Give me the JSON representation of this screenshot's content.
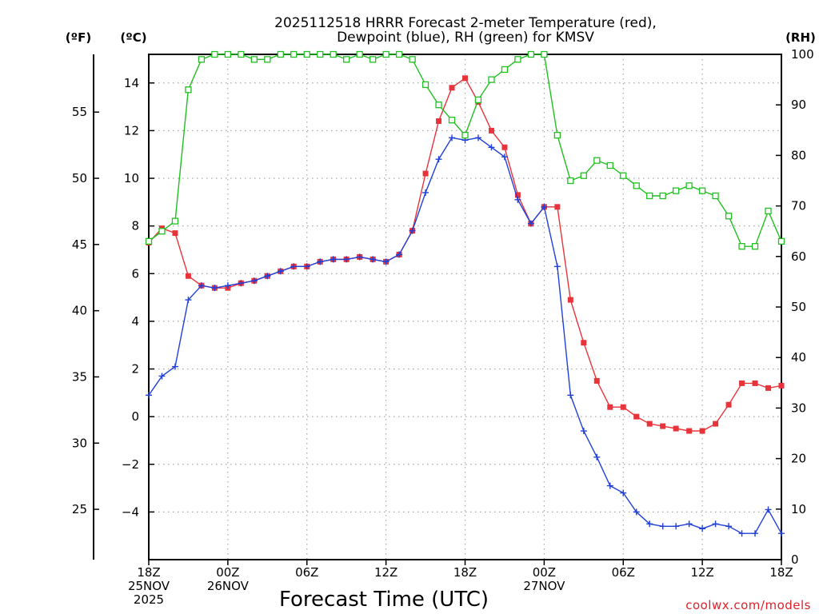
{
  "chart_data": {
    "type": "line",
    "title_lines": [
      "2025112518 HRRR Forecast 2-meter Temperature (red),",
      "Dewpoint (blue), RH (green) for KMSV"
    ],
    "xlabel": "Forecast Time (UTC)",
    "units": {
      "fahrenheit": "(ºF)",
      "celsius": "(ºC)",
      "rh": "(RH)"
    },
    "credit": "coolwx.com/models",
    "x_ticks": [
      {
        "hour": 0,
        "lines": [
          "18Z",
          "25NOV",
          "2025"
        ]
      },
      {
        "hour": 6,
        "lines": [
          "00Z",
          "26NOV"
        ]
      },
      {
        "hour": 12,
        "lines": [
          "06Z"
        ]
      },
      {
        "hour": 18,
        "lines": [
          "12Z"
        ]
      },
      {
        "hour": 24,
        "lines": [
          "18Z"
        ]
      },
      {
        "hour": 30,
        "lines": [
          "00Z",
          "27NOV"
        ]
      },
      {
        "hour": 36,
        "lines": [
          "06Z"
        ]
      },
      {
        "hour": 42,
        "lines": [
          "12Z"
        ]
      },
      {
        "hour": 48,
        "lines": [
          "18Z"
        ]
      }
    ],
    "xlim": [
      0,
      48
    ],
    "ylim_celsius": [
      -6,
      15.2
    ],
    "ylim_rh": [
      0,
      100
    ],
    "celsius_ticks": [
      -4,
      -2,
      0,
      2,
      4,
      6,
      8,
      10,
      12,
      14
    ],
    "celsius_tick_labels": [
      "−4",
      "−2",
      "0",
      "2",
      "4",
      "6",
      "8",
      "10",
      "12",
      "14"
    ],
    "fahrenheit_ticks": [
      25,
      30,
      35,
      40,
      45,
      50,
      55
    ],
    "rh_ticks": [
      0,
      10,
      20,
      30,
      40,
      50,
      60,
      70,
      80,
      90,
      100
    ],
    "grid": true,
    "series": [
      {
        "name": "2-meter Temperature",
        "axis": "celsius",
        "color": "#e8333a",
        "marker": "filled-square",
        "values": [
          7.3,
          7.9,
          7.7,
          5.9,
          5.5,
          5.4,
          5.4,
          5.6,
          5.7,
          5.9,
          6.1,
          6.3,
          6.3,
          6.5,
          6.6,
          6.6,
          6.7,
          6.6,
          6.5,
          6.8,
          7.8,
          10.2,
          12.4,
          13.8,
          14.2,
          13.2,
          12.0,
          11.3,
          9.3,
          8.1,
          8.8,
          8.8,
          4.9,
          3.1,
          1.5,
          0.4,
          0.4,
          0.0,
          -0.3,
          -0.4,
          -0.5,
          -0.6,
          -0.6,
          -0.3,
          0.5,
          1.4,
          1.4,
          1.2,
          1.3
        ]
      },
      {
        "name": "Dewpoint",
        "axis": "celsius",
        "color": "#2040d8",
        "marker": "plus",
        "values": [
          0.9,
          1.7,
          2.1,
          4.9,
          5.5,
          5.4,
          5.5,
          5.6,
          5.7,
          5.9,
          6.1,
          6.3,
          6.3,
          6.5,
          6.6,
          6.6,
          6.7,
          6.6,
          6.5,
          6.8,
          7.8,
          9.4,
          10.8,
          11.7,
          11.6,
          11.7,
          11.3,
          10.9,
          9.1,
          8.1,
          8.8,
          6.3,
          0.9,
          -0.6,
          -1.7,
          -2.9,
          -3.2,
          -4.0,
          -4.5,
          -4.6,
          -4.6,
          -4.5,
          -4.7,
          -4.5,
          -4.6,
          -4.9,
          -4.9,
          -3.9,
          -4.9
        ]
      },
      {
        "name": "RH",
        "axis": "rh",
        "color": "#20c020",
        "marker": "open-square",
        "values": [
          63,
          65,
          67,
          93,
          99,
          100,
          100,
          100,
          99,
          99,
          100,
          100,
          100,
          100,
          100,
          99,
          100,
          99,
          100,
          100,
          99,
          94,
          90,
          87,
          84,
          91,
          95,
          97,
          99,
          100,
          100,
          84,
          75,
          76,
          79,
          78,
          76,
          74,
          72,
          72,
          73,
          74,
          73,
          72,
          68,
          62,
          62,
          69,
          63
        ]
      }
    ]
  }
}
